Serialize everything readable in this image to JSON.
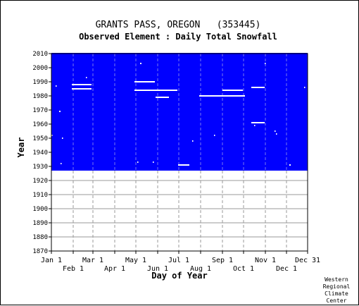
{
  "chart_data": {
    "type": "heatmap",
    "title": "GRANTS PASS, OREGON   (353445)",
    "subtitle": "Observed Element : Daily Total Snowfall",
    "xlabel": "Day of Year",
    "ylabel": "Year",
    "xlim": [
      1,
      365
    ],
    "ylim": [
      1870,
      2010
    ],
    "grid": true,
    "x_ticks_upper": [
      {
        "label": "Jan 1",
        "day": 1
      },
      {
        "label": "Mar 1",
        "day": 60
      },
      {
        "label": "May 1",
        "day": 121
      },
      {
        "label": "Jul 1",
        "day": 182
      },
      {
        "label": "Sep 1",
        "day": 244
      },
      {
        "label": "Nov 1",
        "day": 305
      },
      {
        "label": "Dec 31",
        "day": 365
      }
    ],
    "x_ticks_lower": [
      {
        "label": "Feb 1",
        "day": 32
      },
      {
        "label": "Apr 1",
        "day": 91
      },
      {
        "label": "Jun 1",
        "day": 152
      },
      {
        "label": "Aug 1",
        "day": 213
      },
      {
        "label": "Oct 1",
        "day": 274
      },
      {
        "label": "Dec 1",
        "day": 335
      }
    ],
    "y_ticks": [
      1870,
      1880,
      1890,
      1900,
      1910,
      1920,
      1930,
      1940,
      1950,
      1960,
      1970,
      1980,
      1990,
      2000,
      2010
    ],
    "record": {
      "start_year": 1927,
      "end_year": 2010
    },
    "colors": {
      "observed": "#0000ff",
      "missing": "#ffffff",
      "grid": "#999999"
    },
    "missing_segments": [
      {
        "year": 1931,
        "start_day": 181,
        "end_day": 197
      },
      {
        "year": 1931,
        "start_day": 339,
        "end_day": 341
      },
      {
        "year": 1932,
        "start_day": 14,
        "end_day": 15
      },
      {
        "year": 1933,
        "start_day": 123,
        "end_day": 124
      },
      {
        "year": 1933,
        "start_day": 145,
        "end_day": 146
      },
      {
        "year": 1948,
        "start_day": 201,
        "end_day": 202
      },
      {
        "year": 1950,
        "start_day": 16,
        "end_day": 17
      },
      {
        "year": 1952,
        "start_day": 1,
        "end_day": 2
      },
      {
        "year": 1952,
        "start_day": 232,
        "end_day": 233
      },
      {
        "year": 1953,
        "start_day": 320,
        "end_day": 321
      },
      {
        "year": 1955,
        "start_day": 318,
        "end_day": 319
      },
      {
        "year": 1959,
        "start_day": 289,
        "end_day": 290
      },
      {
        "year": 1961,
        "start_day": 285,
        "end_day": 304
      },
      {
        "year": 1969,
        "start_day": 12,
        "end_day": 14
      },
      {
        "year": 1979,
        "start_day": 149,
        "end_day": 168
      },
      {
        "year": 1980,
        "start_day": 211,
        "end_day": 276
      },
      {
        "year": 1984,
        "start_day": 119,
        "end_day": 180
      },
      {
        "year": 1984,
        "start_day": 244,
        "end_day": 273
      },
      {
        "year": 1985,
        "start_day": 30,
        "end_day": 58
      },
      {
        "year": 1986,
        "start_day": 285,
        "end_day": 304
      },
      {
        "year": 1986,
        "start_day": 360,
        "end_day": 361
      },
      {
        "year": 1987,
        "start_day": 7,
        "end_day": 8
      },
      {
        "year": 1988,
        "start_day": 30,
        "end_day": 58
      },
      {
        "year": 1990,
        "start_day": 119,
        "end_day": 148
      },
      {
        "year": 1993,
        "start_day": 50,
        "end_day": 51
      },
      {
        "year": 2003,
        "start_day": 127,
        "end_day": 129
      },
      {
        "year": 2003,
        "start_day": 304,
        "end_day": 305
      }
    ]
  },
  "credit": [
    "Western",
    "Regional",
    "Climate",
    "Center"
  ]
}
